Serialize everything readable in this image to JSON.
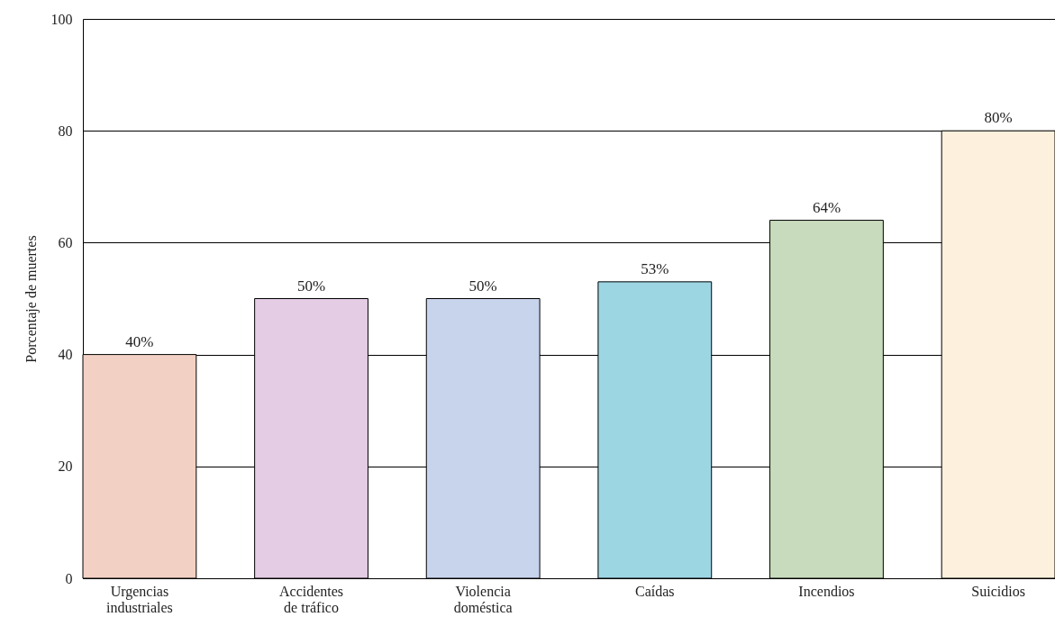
{
  "chart_data": {
    "type": "bar",
    "ylabel": "Porcentaje de muertes",
    "categories": [
      "Urgencias\nindustriales",
      "Accidentes\nde tráfico",
      "Violencia\ndoméstica",
      "Caídas",
      "Incendios",
      "Suicidios"
    ],
    "values": [
      40,
      50,
      50,
      53,
      64,
      80
    ],
    "value_labels": [
      "40%",
      "50%",
      "50%",
      "53%",
      "64%",
      "80%"
    ],
    "colors": [
      "#f3d0c4",
      "#e4cce4",
      "#c8d3ec",
      "#9dd6e3",
      "#c8dbbc",
      "#fdf0dc"
    ],
    "ylim": [
      0,
      100
    ],
    "yticks": [
      0,
      20,
      40,
      60,
      80,
      100
    ],
    "grid": "y"
  }
}
